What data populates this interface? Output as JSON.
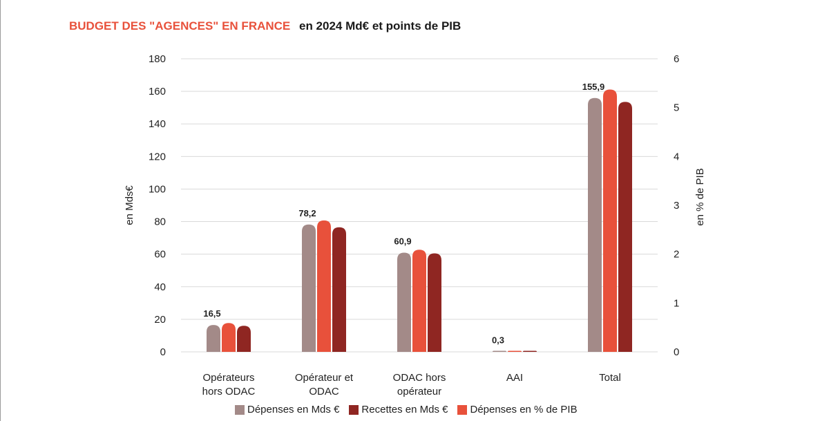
{
  "title": {
    "main": "BUDGET DES \"AGENCES\" EN FRANCE",
    "sub": "en 2024 Md€ et points de PIB"
  },
  "colors": {
    "title_accent": "#e8513b",
    "depenses": "#a38a88",
    "recettes": "#8f2622",
    "pib": "#e8513b",
    "grid": "#d9d9d9"
  },
  "chart_data": {
    "type": "bar",
    "categories": [
      [
        "Opérateurs",
        "hors ODAC"
      ],
      [
        "Opérateur et",
        "ODAC"
      ],
      [
        "ODAC hors",
        "opérateur"
      ],
      [
        "AAI"
      ],
      [
        "Total"
      ]
    ],
    "series": [
      {
        "name": "Dépenses en Mds €",
        "axis": "left",
        "values": [
          16.5,
          78.2,
          60.9,
          0.3,
          155.9
        ]
      },
      {
        "name": "Recettes en Mds €",
        "axis": "left",
        "values": [
          16,
          76.5,
          60.5,
          0.3,
          153.5
        ]
      },
      {
        "name": "Dépenses en % de PIB",
        "axis": "right",
        "values": [
          0.59,
          2.69,
          2.09,
          0.01,
          5.37
        ]
      }
    ],
    "data_labels": [
      "16,5",
      "78,2",
      "60,9",
      "0,3",
      "155,9"
    ],
    "ylabel": "en Mds€",
    "ylim": [
      0,
      180
    ],
    "yticks": [
      0,
      20,
      40,
      60,
      80,
      100,
      120,
      140,
      160,
      180
    ],
    "y2label": "en % de PIB",
    "y2lim": [
      0,
      6
    ],
    "y2ticks": [
      0,
      1,
      2,
      3,
      4,
      5,
      6
    ],
    "grid": true,
    "legend_position": "bottom"
  }
}
